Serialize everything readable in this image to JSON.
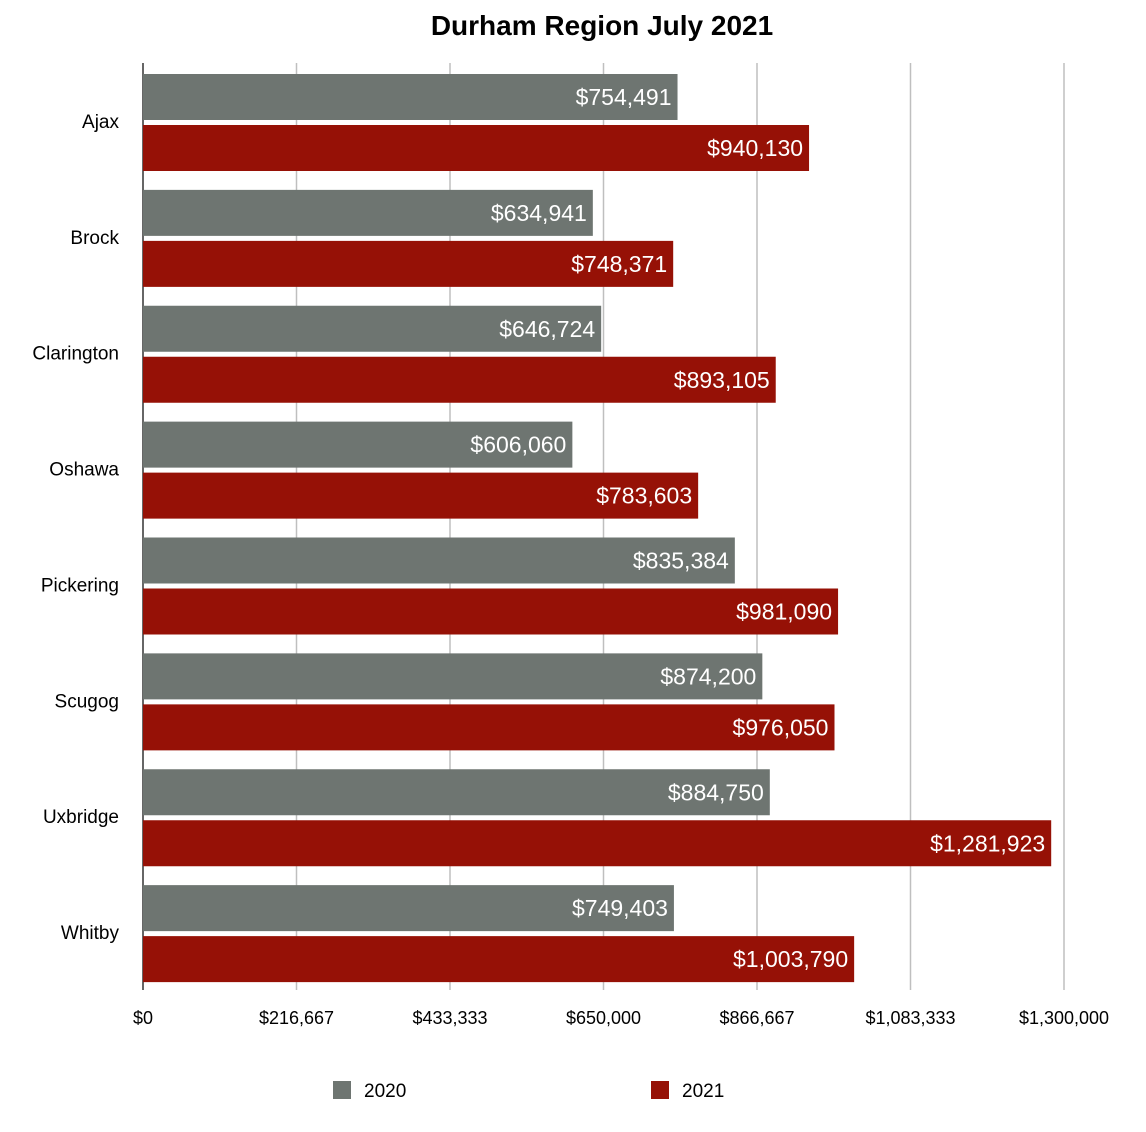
{
  "chart_data": {
    "type": "bar",
    "orientation": "horizontal",
    "title": "Durham Region July 2021",
    "xlabel": "",
    "ylabel": "",
    "categories": [
      "Ajax",
      "Brock",
      "Clarington",
      "Oshawa",
      "Pickering",
      "Scugog",
      "Uxbridge",
      "Whitby"
    ],
    "series": [
      {
        "name": "2020",
        "color": "#6e7571",
        "values": [
          754491,
          634941,
          646724,
          606060,
          835384,
          874200,
          884750,
          749403
        ],
        "labels": [
          "$754,491",
          "$634,941",
          "$646,724",
          "$606,060",
          "$835,384",
          "$874,200",
          "$884,750",
          "$749,403"
        ]
      },
      {
        "name": "2021",
        "color": "#961106",
        "values": [
          940130,
          748371,
          893105,
          783603,
          981090,
          976050,
          1281923,
          1003790
        ],
        "labels": [
          "$940,130",
          "$748,371",
          "$893,105",
          "$783,603",
          "$981,090",
          "$976,050",
          "$1,281,923",
          "$1,003,790"
        ]
      }
    ],
    "xlim": [
      0,
      1300000
    ],
    "x_ticks": [
      0,
      216667,
      433333,
      650000,
      866667,
      1083333,
      1300000
    ],
    "x_tick_labels": [
      "$0",
      "$216,667",
      "$433,333",
      "$650,000",
      "$866,667",
      "$1,083,333",
      "$1,300,000"
    ],
    "grid": true,
    "legend_position": "bottom",
    "gridline_color": "#bfbfbf",
    "axis_color": "#333333"
  }
}
